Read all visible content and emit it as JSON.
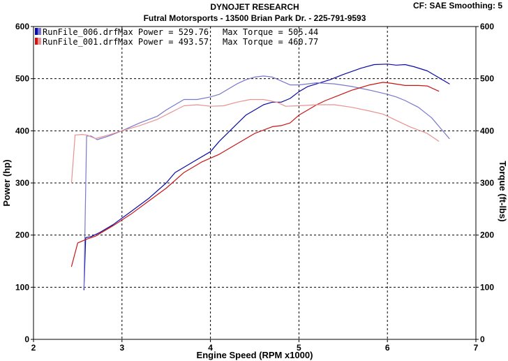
{
  "header": {
    "title": "DYNOJET RESEARCH",
    "subtitle": "Futral Motorsports - 13500  Brian  Park Dr. - 225-791-9593",
    "settings": "CF: SAE  Smoothing: 5"
  },
  "chart_data": {
    "type": "line",
    "xlabel": "Engine Speed (RPM x1000)",
    "ylabel_left": "Power (hp)",
    "ylabel_right": "Torque (ft-lbs)",
    "xlim": [
      2,
      7
    ],
    "ylim": [
      0,
      600
    ],
    "x_ticks": [
      "2",
      "3",
      "4",
      "5",
      "6",
      "7"
    ],
    "y_ticks_left": [
      "0",
      "100",
      "200",
      "300",
      "400",
      "500",
      "600"
    ],
    "y_ticks_right": [
      "0",
      "100",
      "200",
      "300",
      "400",
      "500",
      "600"
    ],
    "grid": true,
    "legend_position": "top-left",
    "legend": [
      {
        "file": "RunFile_006.drf",
        "max_power": "Max Power = 529.76",
        "max_torque": "Max Torque = 505.44",
        "color": "#0a0aa6"
      },
      {
        "file": "RunFile_001.drf",
        "max_power": "Max Power = 493.57",
        "max_torque": "Max Torque = 460.77",
        "color": "#c81414"
      }
    ],
    "series": [
      {
        "kind": "power",
        "run": "RunFile_006.drf",
        "color": "#0a0aa6",
        "points": [
          [
            2.57,
            95
          ],
          [
            2.59,
            195
          ],
          [
            2.65,
            197
          ],
          [
            2.75,
            205
          ],
          [
            2.9,
            220
          ],
          [
            3.1,
            245
          ],
          [
            3.3,
            270
          ],
          [
            3.5,
            300
          ],
          [
            3.6,
            320
          ],
          [
            3.8,
            340
          ],
          [
            4.0,
            360
          ],
          [
            4.1,
            380
          ],
          [
            4.25,
            405
          ],
          [
            4.4,
            430
          ],
          [
            4.5,
            440
          ],
          [
            4.6,
            450
          ],
          [
            4.7,
            455
          ],
          [
            4.8,
            455
          ],
          [
            4.9,
            462
          ],
          [
            5.0,
            475
          ],
          [
            5.1,
            485
          ],
          [
            5.2,
            490
          ],
          [
            5.35,
            498
          ],
          [
            5.5,
            508
          ],
          [
            5.7,
            520
          ],
          [
            5.85,
            527
          ],
          [
            6.0,
            528
          ],
          [
            6.1,
            526
          ],
          [
            6.2,
            527
          ],
          [
            6.3,
            523
          ],
          [
            6.45,
            515
          ],
          [
            6.55,
            505
          ],
          [
            6.6,
            500
          ],
          [
            6.7,
            490
          ]
        ]
      },
      {
        "kind": "torque",
        "run": "RunFile_006.drf",
        "color": "#7777cc",
        "points": [
          [
            2.57,
            98
          ],
          [
            2.6,
            390
          ],
          [
            2.65,
            390
          ],
          [
            2.72,
            383
          ],
          [
            2.85,
            390
          ],
          [
            3.0,
            400
          ],
          [
            3.2,
            415
          ],
          [
            3.4,
            428
          ],
          [
            3.5,
            440
          ],
          [
            3.6,
            450
          ],
          [
            3.7,
            460
          ],
          [
            3.85,
            460
          ],
          [
            4.0,
            465
          ],
          [
            4.1,
            470
          ],
          [
            4.3,
            490
          ],
          [
            4.4,
            498
          ],
          [
            4.5,
            503
          ],
          [
            4.6,
            505
          ],
          [
            4.7,
            503
          ],
          [
            4.9,
            488
          ],
          [
            5.0,
            488
          ],
          [
            5.2,
            492
          ],
          [
            5.4,
            490
          ],
          [
            5.6,
            485
          ],
          [
            5.8,
            478
          ],
          [
            6.0,
            470
          ],
          [
            6.1,
            465
          ],
          [
            6.2,
            458
          ],
          [
            6.35,
            445
          ],
          [
            6.5,
            425
          ],
          [
            6.6,
            405
          ],
          [
            6.7,
            385
          ]
        ]
      },
      {
        "kind": "power",
        "run": "RunFile_001.drf",
        "color": "#c81414",
        "points": [
          [
            2.43,
            140
          ],
          [
            2.5,
            185
          ],
          [
            2.6,
            192
          ],
          [
            2.7,
            198
          ],
          [
            2.9,
            218
          ],
          [
            3.1,
            240
          ],
          [
            3.3,
            265
          ],
          [
            3.5,
            290
          ],
          [
            3.7,
            320
          ],
          [
            3.9,
            340
          ],
          [
            4.1,
            355
          ],
          [
            4.3,
            375
          ],
          [
            4.5,
            395
          ],
          [
            4.7,
            408
          ],
          [
            4.8,
            410
          ],
          [
            4.9,
            415
          ],
          [
            5.0,
            430
          ],
          [
            5.1,
            440
          ],
          [
            5.2,
            450
          ],
          [
            5.3,
            458
          ],
          [
            5.45,
            468
          ],
          [
            5.6,
            478
          ],
          [
            5.8,
            488
          ],
          [
            5.95,
            493
          ],
          [
            6.05,
            491
          ],
          [
            6.2,
            487
          ],
          [
            6.35,
            487
          ],
          [
            6.45,
            486
          ],
          [
            6.58,
            476
          ]
        ]
      },
      {
        "kind": "torque",
        "run": "RunFile_001.drf",
        "color": "#e89292",
        "points": [
          [
            2.43,
            300
          ],
          [
            2.47,
            392
          ],
          [
            2.55,
            393
          ],
          [
            2.6,
            392
          ],
          [
            2.7,
            385
          ],
          [
            2.85,
            392
          ],
          [
            3.0,
            400
          ],
          [
            3.2,
            410
          ],
          [
            3.4,
            422
          ],
          [
            3.55,
            435
          ],
          [
            3.7,
            448
          ],
          [
            3.85,
            450
          ],
          [
            4.0,
            447
          ],
          [
            4.15,
            448
          ],
          [
            4.3,
            455
          ],
          [
            4.45,
            460
          ],
          [
            4.6,
            460
          ],
          [
            4.75,
            455
          ],
          [
            4.85,
            447
          ],
          [
            5.0,
            448
          ],
          [
            5.2,
            450
          ],
          [
            5.4,
            450
          ],
          [
            5.6,
            445
          ],
          [
            5.8,
            438
          ],
          [
            5.95,
            432
          ],
          [
            6.1,
            420
          ],
          [
            6.25,
            408
          ],
          [
            6.45,
            395
          ],
          [
            6.58,
            380
          ]
        ]
      }
    ]
  }
}
